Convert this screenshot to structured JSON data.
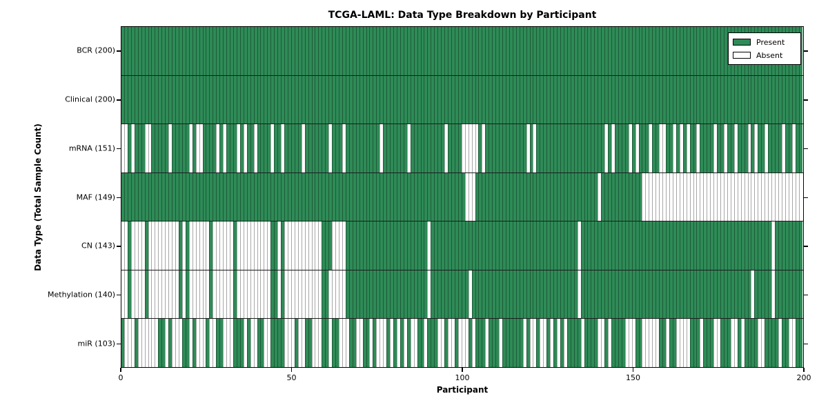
{
  "chart_data": {
    "type": "heatmap",
    "title": "TCGA-LAML: Data Type Breakdown by Participant",
    "xlabel": "Participant",
    "ylabel": "Data Type (Total Sample Count)",
    "x_ticks": [
      0,
      50,
      100,
      150,
      200
    ],
    "x_range": [
      0,
      200
    ],
    "n_participants": 200,
    "colors": {
      "present": "#2e8b57",
      "absent": "#ffffff"
    },
    "legend": [
      {
        "label": "Present",
        "color": "#2e8b57"
      },
      {
        "label": "Absent",
        "color": "#ffffff"
      }
    ],
    "legend_position": "upper right",
    "rows": [
      {
        "label": "BCR (200)",
        "name": "BCR",
        "present_count": 200,
        "absent": []
      },
      {
        "label": "Clinical (200)",
        "name": "Clinical",
        "present_count": 200,
        "absent": []
      },
      {
        "label": "mRNA (151)",
        "name": "mRNA",
        "present_count": 151,
        "absent": [
          0,
          1,
          3,
          7,
          8,
          14,
          20,
          22,
          23,
          28,
          30,
          34,
          36,
          39,
          44,
          47,
          53,
          61,
          65,
          76,
          84,
          95,
          "100-104",
          106,
          119,
          121,
          142,
          144,
          149,
          151,
          155,
          158,
          159,
          162,
          164,
          166,
          169,
          174,
          177,
          180,
          184,
          186,
          189,
          194,
          197
        ]
      },
      {
        "label": "MAF (149)",
        "name": "MAF",
        "present_count": 149,
        "absent": [
          101,
          102,
          103,
          140,
          "153-199"
        ]
      },
      {
        "label": "CN (143)",
        "name": "CN",
        "present_count": 143,
        "absent": [
          "0-1",
          "3-6",
          "8-16",
          18,
          "20-25",
          "27-32",
          "34-43",
          46,
          "48-58",
          "62-65",
          90,
          134,
          191
        ]
      },
      {
        "label": "Methylation (140)",
        "name": "Methylation",
        "present_count": 140,
        "absent": [
          "0-1",
          "3-6",
          "8-16",
          18,
          "20-25",
          "27-32",
          "34-43",
          46,
          "48-58",
          "61-65",
          90,
          102,
          134,
          185,
          191
        ]
      },
      {
        "label": "miR (103)",
        "name": "miR",
        "present_count": 103,
        "absent": [
          "1-3",
          "5-10",
          13,
          "15-17",
          20,
          "22-24",
          "26-27",
          "30-32",
          36,
          "38-39",
          "42-43",
          "48-50",
          "52-53",
          "56-58",
          61,
          "64-66",
          "69-70",
          73,
          "75-77",
          79,
          81,
          83,
          "85-86",
          89,
          "93-94",
          "96-97",
          "99-101",
          103,
          107,
          111,
          118,
          "120-121",
          "123-124",
          126,
          128,
          130,
          135,
          "140-141",
          143,
          "148-150",
          "153-157",
          160,
          "163-166",
          170,
          "174-175",
          "179-180",
          182,
          "187-188",
          193,
          "196-197"
        ]
      }
    ]
  }
}
